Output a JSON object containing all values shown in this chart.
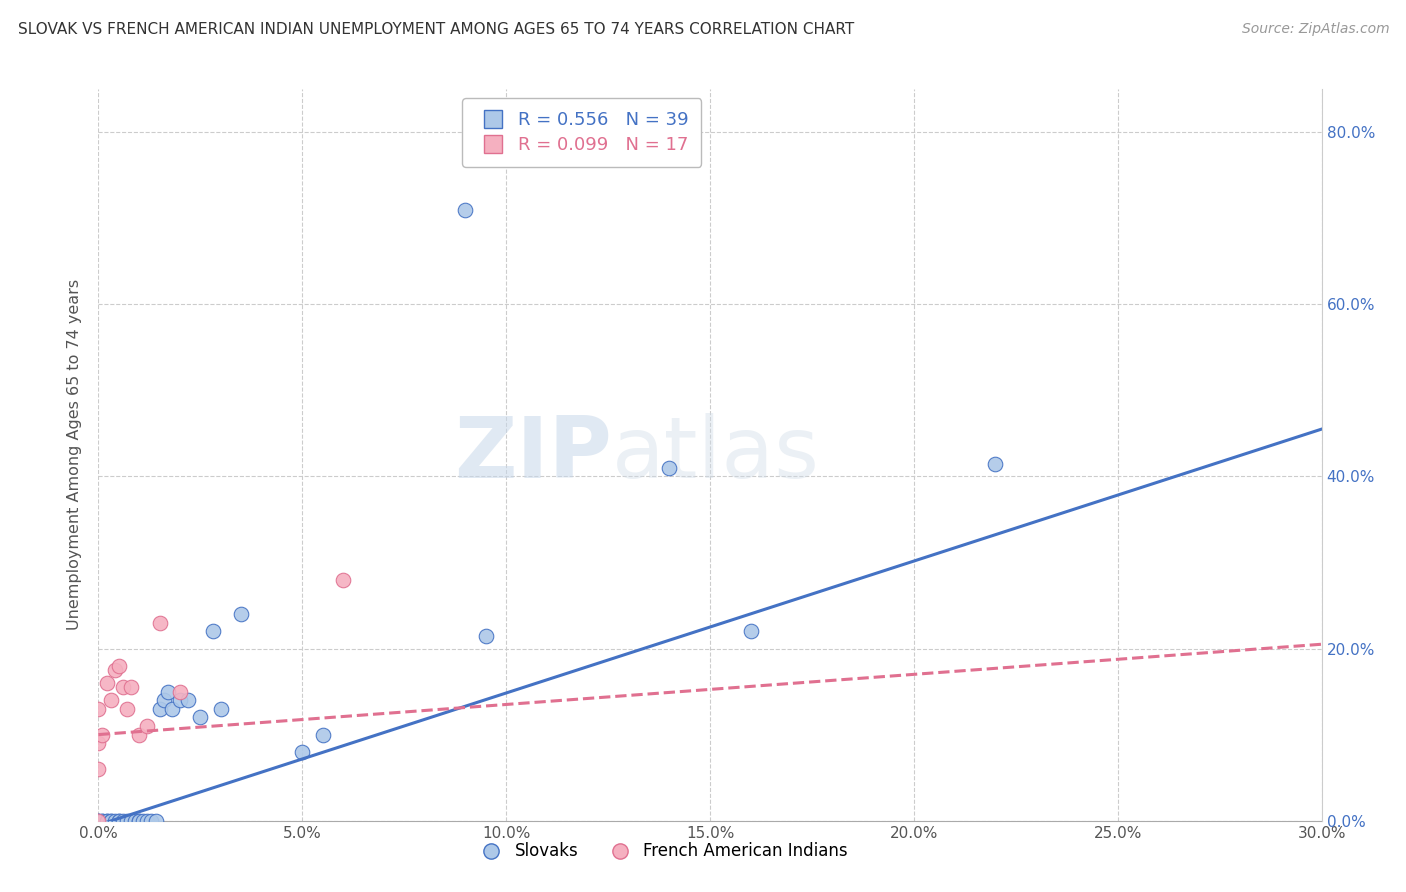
{
  "title": "SLOVAK VS FRENCH AMERICAN INDIAN UNEMPLOYMENT AMONG AGES 65 TO 74 YEARS CORRELATION CHART",
  "source": "Source: ZipAtlas.com",
  "ylabel": "Unemployment Among Ages 65 to 74 years",
  "xlim": [
    0.0,
    0.3
  ],
  "ylim": [
    0.0,
    0.85
  ],
  "watermark_zip": "ZIP",
  "watermark_atlas": "atlas",
  "legend1_label": "Slovaks",
  "legend2_label": "French American Indians",
  "R_slovak": 0.556,
  "N_slovak": 39,
  "R_french": 0.099,
  "N_french": 17,
  "slovak_color": "#adc8e8",
  "french_color": "#f5b0c0",
  "trendline_slovak_color": "#4472c4",
  "trendline_french_color": "#e07090",
  "slovak_x": [
    0.0,
    0.0,
    0.0,
    0.001,
    0.001,
    0.002,
    0.002,
    0.003,
    0.003,
    0.004,
    0.005,
    0.005,
    0.006,
    0.007,
    0.008,
    0.009,
    0.01,
    0.01,
    0.011,
    0.012,
    0.013,
    0.014,
    0.015,
    0.016,
    0.017,
    0.018,
    0.02,
    0.022,
    0.025,
    0.028,
    0.03,
    0.035,
    0.05,
    0.055,
    0.09,
    0.095,
    0.14,
    0.16,
    0.22
  ],
  "slovak_y": [
    0.0,
    0.0,
    0.0,
    0.0,
    0.0,
    0.0,
    0.0,
    0.0,
    0.0,
    0.0,
    0.0,
    0.0,
    0.0,
    0.0,
    0.0,
    0.0,
    0.0,
    0.0,
    0.0,
    0.0,
    0.0,
    0.0,
    0.13,
    0.14,
    0.15,
    0.13,
    0.14,
    0.14,
    0.12,
    0.22,
    0.13,
    0.24,
    0.08,
    0.1,
    0.71,
    0.215,
    0.41,
    0.22,
    0.415
  ],
  "french_x": [
    0.0,
    0.0,
    0.0,
    0.0,
    0.001,
    0.002,
    0.003,
    0.004,
    0.005,
    0.006,
    0.007,
    0.008,
    0.01,
    0.012,
    0.015,
    0.02,
    0.06
  ],
  "french_y": [
    0.0,
    0.06,
    0.09,
    0.13,
    0.1,
    0.16,
    0.14,
    0.175,
    0.18,
    0.155,
    0.13,
    0.155,
    0.1,
    0.11,
    0.23,
    0.15,
    0.28
  ],
  "trendline_slovak_x0": 0.0,
  "trendline_slovak_x1": 0.3,
  "trendline_slovak_y0": -0.005,
  "trendline_slovak_y1": 0.455,
  "trendline_french_x0": 0.0,
  "trendline_french_x1": 0.3,
  "trendline_french_y0": 0.1,
  "trendline_french_y1": 0.205,
  "background_color": "#ffffff",
  "grid_color": "#cccccc",
  "x_tick_vals": [
    0.0,
    0.05,
    0.1,
    0.15,
    0.2,
    0.25,
    0.3
  ],
  "x_tick_labels": [
    "0.0%",
    "5.0%",
    "10.0%",
    "15.0%",
    "20.0%",
    "25.0%",
    "30.0%"
  ],
  "y_tick_vals": [
    0.0,
    0.2,
    0.4,
    0.6,
    0.8
  ],
  "y_tick_labels": [
    "0.0%",
    "20.0%",
    "40.0%",
    "60.0%",
    "80.0%"
  ]
}
